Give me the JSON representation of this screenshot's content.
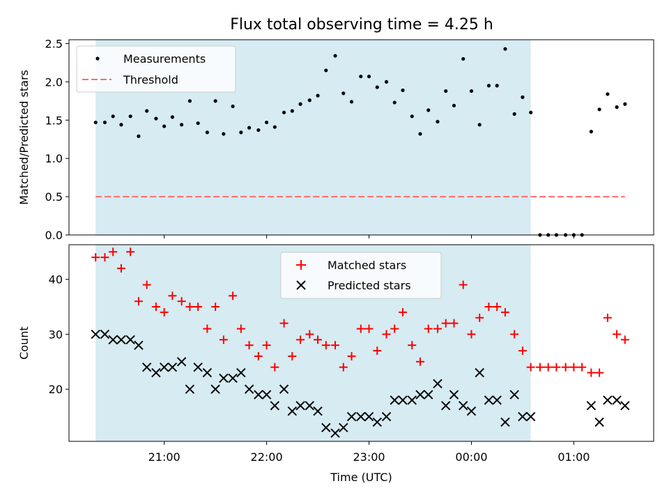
{
  "colors": {
    "shade": "#add8e6",
    "measurement": "#000000",
    "threshold": "#ff6b6b",
    "matched": "#ff0000",
    "predicted": "#000000"
  },
  "chart_data": [
    {
      "type": "scatter",
      "title": "Flux total observing time = 4.25 h",
      "xlabel": "",
      "ylabel": "Matched/Predicted stars",
      "ylim": [
        0,
        2.55
      ],
      "y_ticks": [
        "0.0",
        "0.5",
        "1.0",
        "1.5",
        "2.0",
        "2.5"
      ],
      "y_tick_values": [
        0,
        0.5,
        1.0,
        1.5,
        2.0,
        2.5
      ],
      "legend": {
        "placement": "upper-left",
        "entries": [
          "Measurements",
          "Threshold"
        ]
      },
      "shaded_interval_hours": [
        20.33,
        24.58
      ],
      "threshold": {
        "name": "Threshold",
        "value": 0.5,
        "x_range_hours": [
          20.33,
          25.5
        ]
      },
      "series": [
        {
          "name": "Measurements",
          "x_hours": [
            20.33,
            20.42,
            20.5,
            20.58,
            20.67,
            20.75,
            20.83,
            20.92,
            21.0,
            21.08,
            21.17,
            21.25,
            21.33,
            21.42,
            21.5,
            21.58,
            21.67,
            21.75,
            21.83,
            21.92,
            22.0,
            22.08,
            22.17,
            22.25,
            22.33,
            22.42,
            22.5,
            22.58,
            22.67,
            22.75,
            22.83,
            22.92,
            23.0,
            23.08,
            23.17,
            23.25,
            23.33,
            23.42,
            23.5,
            23.58,
            23.67,
            23.75,
            23.83,
            23.92,
            24.0,
            24.08,
            24.17,
            24.25,
            24.33,
            24.42,
            24.5,
            24.58,
            24.67,
            24.75,
            24.83,
            24.92,
            25.0,
            25.08,
            25.17,
            25.25,
            25.33,
            25.42,
            25.5
          ],
          "values": [
            1.47,
            1.47,
            1.55,
            1.44,
            1.55,
            1.29,
            1.62,
            1.52,
            1.42,
            1.54,
            1.44,
            1.75,
            1.46,
            1.34,
            1.75,
            1.32,
            1.68,
            1.34,
            1.4,
            1.37,
            1.47,
            1.41,
            1.6,
            1.62,
            1.71,
            1.76,
            1.82,
            2.15,
            2.34,
            1.85,
            1.74,
            2.07,
            2.07,
            1.93,
            2.0,
            1.73,
            1.89,
            1.55,
            1.32,
            1.63,
            1.48,
            1.88,
            1.69,
            2.3,
            1.88,
            1.44,
            1.95,
            1.95,
            2.43,
            1.58,
            1.8,
            1.6,
            0,
            0,
            0,
            0,
            0,
            0,
            1.35,
            1.64,
            1.84,
            1.67,
            1.71
          ]
        }
      ]
    },
    {
      "type": "scatter",
      "title": "",
      "xlabel": "Time (UTC)",
      "ylabel": "Count",
      "ylim": [
        10.5,
        46.3
      ],
      "y_ticks": [
        "20",
        "30",
        "40"
      ],
      "y_tick_values": [
        20,
        30,
        40
      ],
      "x_ticks": [
        "21:00",
        "22:00",
        "23:00",
        "00:00",
        "01:00"
      ],
      "x_tick_hours": [
        21,
        22,
        23,
        24,
        25
      ],
      "x_range_hours": [
        20.07,
        25.78
      ],
      "legend": {
        "placement": "upper-center",
        "entries": [
          "Matched stars",
          "Predicted stars"
        ]
      },
      "series": [
        {
          "name": "Matched stars",
          "marker": "plus",
          "x_hours": [
            20.33,
            20.42,
            20.5,
            20.58,
            20.67,
            20.75,
            20.83,
            20.92,
            21.0,
            21.08,
            21.17,
            21.25,
            21.33,
            21.42,
            21.5,
            21.58,
            21.67,
            21.75,
            21.83,
            21.92,
            22.0,
            22.08,
            22.17,
            22.25,
            22.33,
            22.42,
            22.5,
            22.58,
            22.67,
            22.75,
            22.83,
            22.92,
            23.0,
            23.08,
            23.17,
            23.25,
            23.33,
            23.42,
            23.5,
            23.58,
            23.67,
            23.75,
            23.83,
            23.92,
            24.0,
            24.08,
            24.17,
            24.25,
            24.33,
            24.42,
            24.5,
            24.58,
            24.67,
            24.75,
            24.83,
            24.92,
            25.0,
            25.08,
            25.17,
            25.25,
            25.33,
            25.42,
            25.5
          ],
          "values": [
            44,
            44,
            45,
            42,
            45,
            36,
            39,
            35,
            34,
            37,
            36,
            35,
            35,
            31,
            35,
            29,
            37,
            31,
            28,
            26,
            28,
            24,
            32,
            26,
            29,
            30,
            29,
            28,
            28,
            24,
            26,
            31,
            31,
            27,
            30,
            31,
            34,
            28,
            25,
            31,
            31,
            32,
            32,
            39,
            30,
            33,
            35,
            35,
            34,
            30,
            27,
            24,
            24,
            24,
            24,
            24,
            24,
            24,
            23,
            23,
            33,
            30,
            29
          ]
        },
        {
          "name": "Predicted stars",
          "marker": "x",
          "x_hours": [
            20.33,
            20.42,
            20.5,
            20.58,
            20.67,
            20.75,
            20.83,
            20.92,
            21.0,
            21.08,
            21.17,
            21.25,
            21.33,
            21.42,
            21.5,
            21.58,
            21.67,
            21.75,
            21.83,
            21.92,
            22.0,
            22.08,
            22.17,
            22.25,
            22.33,
            22.42,
            22.5,
            22.58,
            22.67,
            22.75,
            22.83,
            22.92,
            23.0,
            23.08,
            23.17,
            23.25,
            23.33,
            23.42,
            23.5,
            23.58,
            23.67,
            23.75,
            23.83,
            23.92,
            24.0,
            24.08,
            24.17,
            24.25,
            24.33,
            24.42,
            24.5,
            24.58,
            25.17,
            25.25,
            25.33,
            25.42,
            25.5
          ],
          "values": [
            30,
            30,
            29,
            29,
            29,
            28,
            24,
            23,
            24,
            24,
            25,
            20,
            24,
            23,
            20,
            22,
            22,
            23,
            20,
            19,
            19,
            17,
            20,
            16,
            17,
            17,
            16,
            13,
            12,
            13,
            15,
            15,
            15,
            14,
            15,
            18,
            18,
            18,
            19,
            19,
            21,
            17,
            19,
            17,
            16,
            23,
            18,
            18,
            14,
            19,
            15,
            15,
            17,
            14,
            18,
            18,
            17
          ]
        }
      ]
    }
  ]
}
